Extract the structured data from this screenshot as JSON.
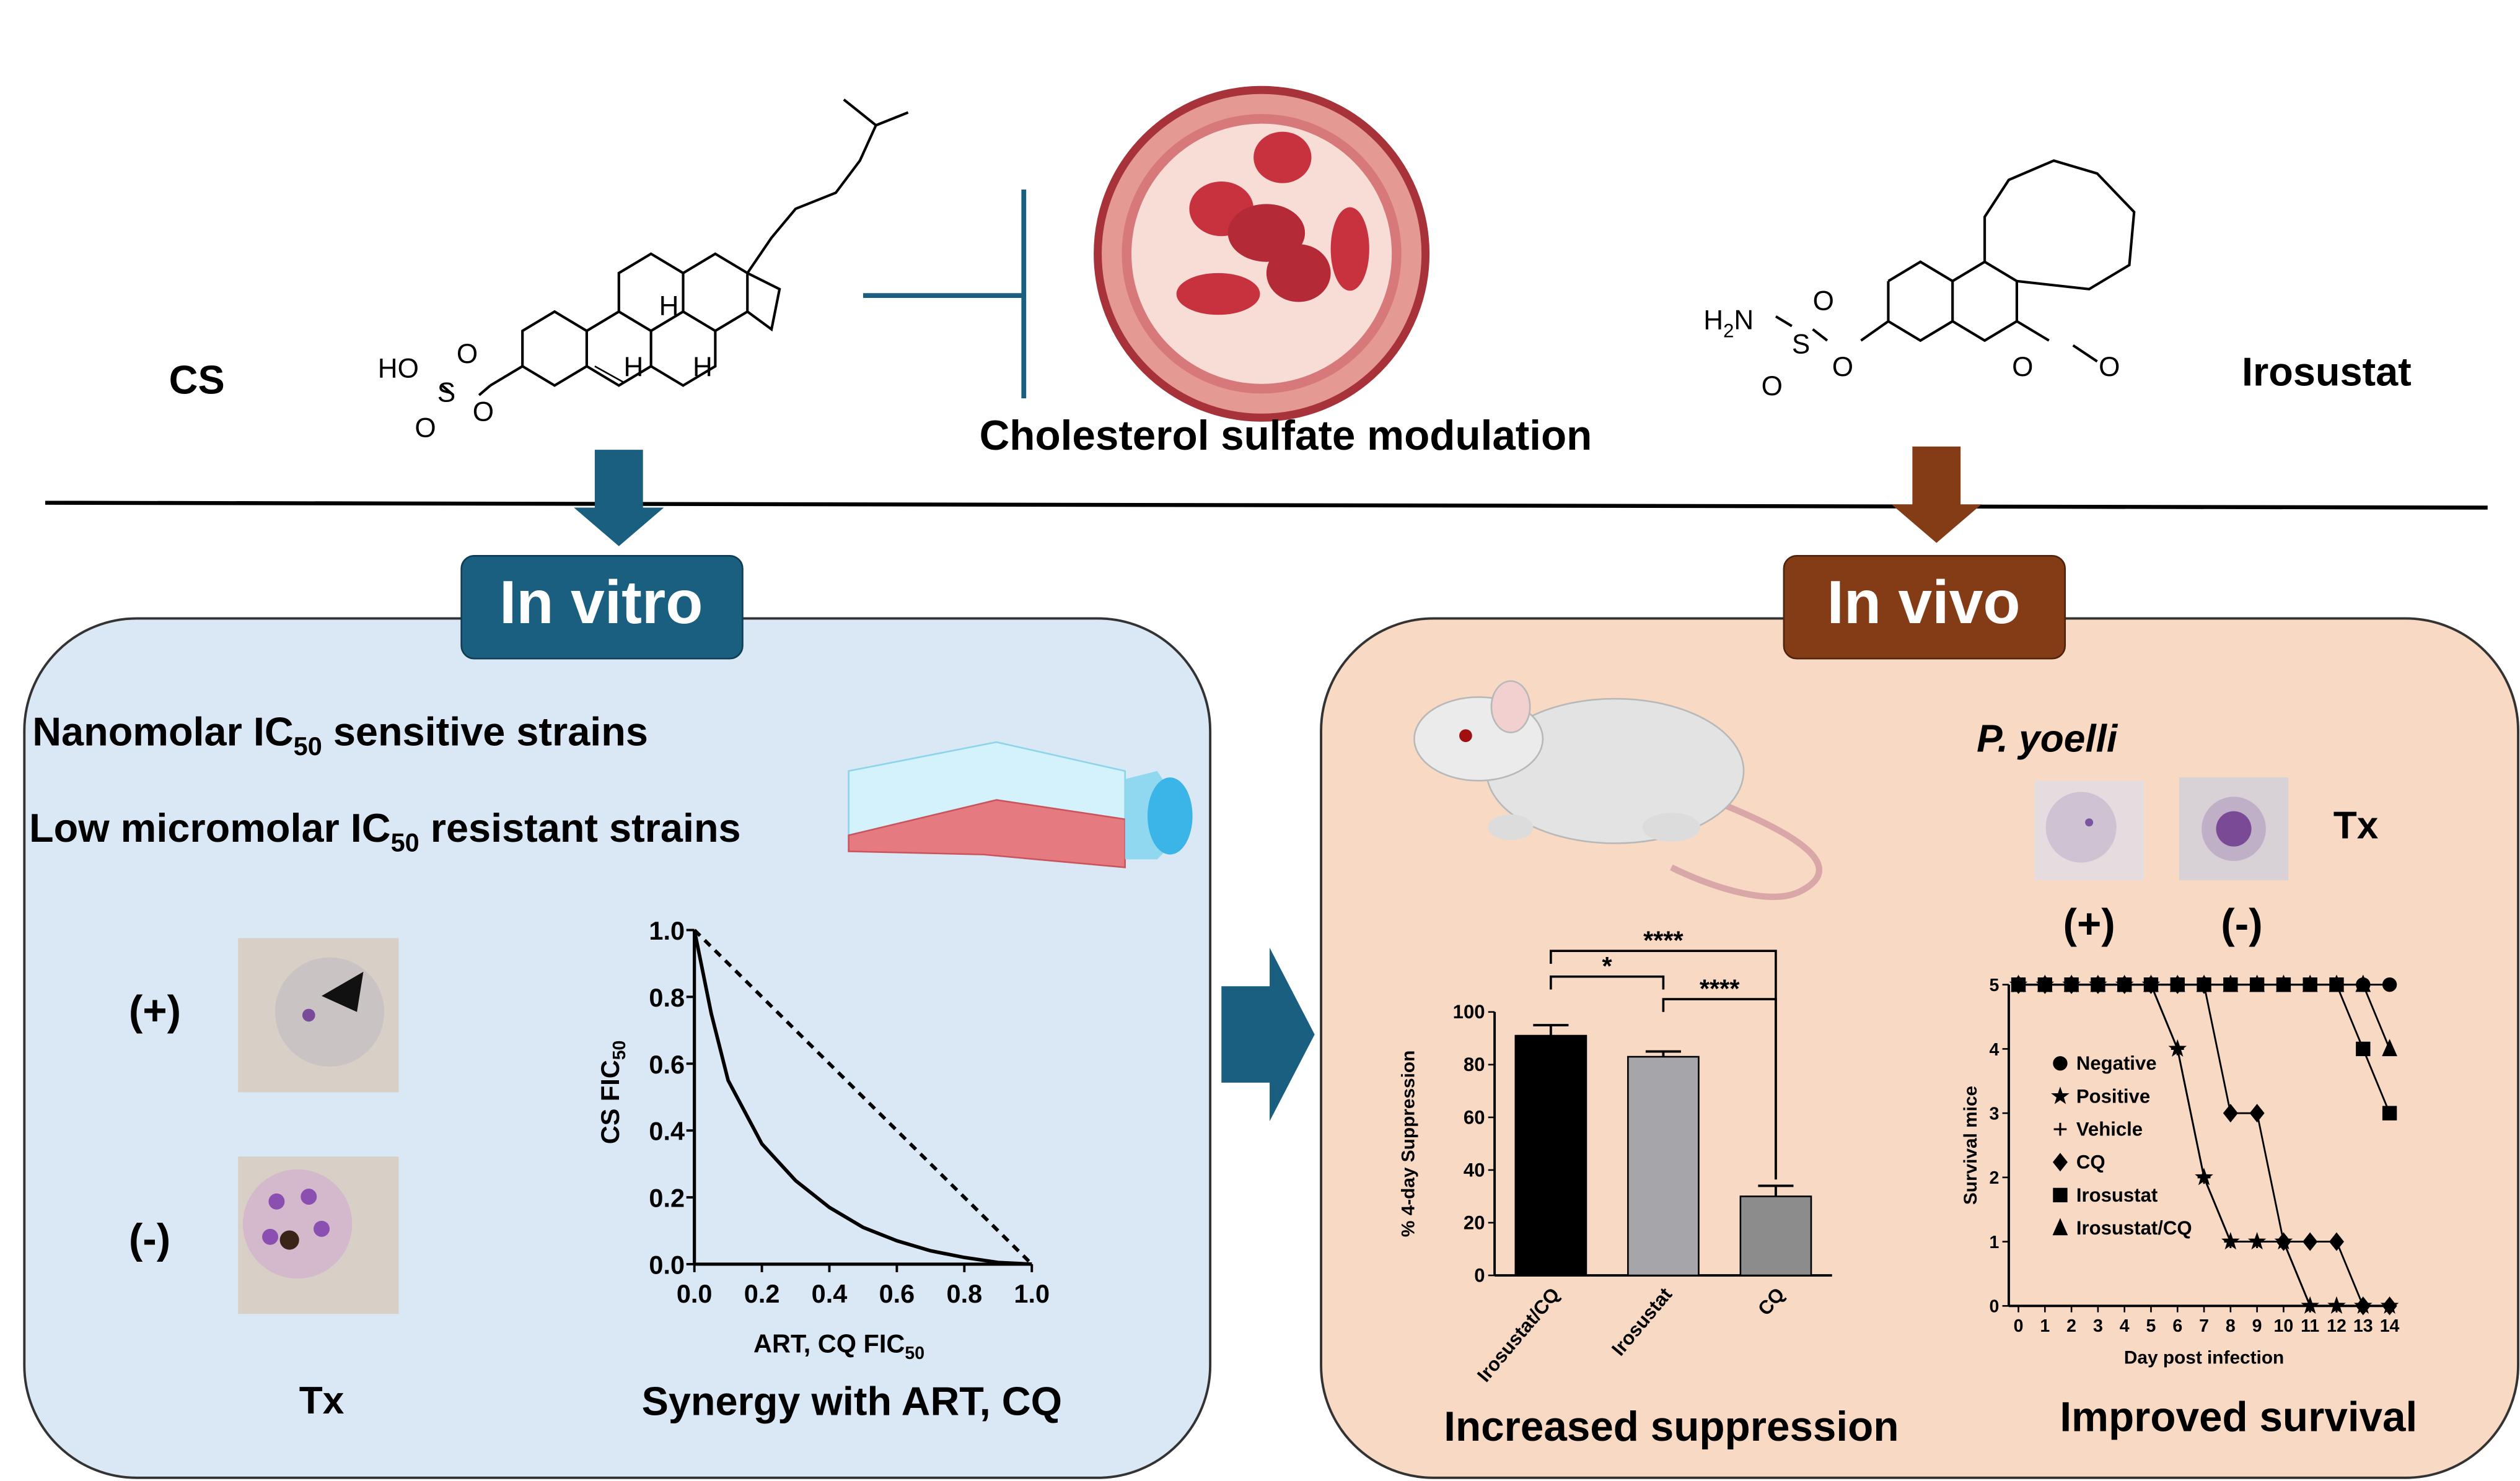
{
  "header": {
    "left_compound": "CS",
    "right_compound": "Irosustat",
    "center_caption": "Cholesterol sulfate modulation",
    "cs_atoms": [
      "HO",
      "S",
      "O",
      "O",
      "O",
      "H",
      "H",
      "H"
    ],
    "irosustat_atoms": [
      "H",
      "2",
      "N",
      "S",
      "O",
      "O",
      "O",
      "O",
      "O"
    ]
  },
  "in_vitro": {
    "title": "In vitro",
    "sensitive": {
      "pre": "Nanomolar IC",
      "sub": "50",
      "post": " sensitive strains"
    },
    "resistant": {
      "pre": "Low micromolar IC",
      "sub": "50",
      "post": " resistant strains"
    },
    "smear_labels": [
      "(+)",
      "(-)"
    ],
    "treatment_label": "Tx",
    "isobologram": {
      "type": "line",
      "xlabel": {
        "pre": "ART, CQ FIC",
        "sub": "50"
      },
      "ylabel": {
        "pre": "CS FIC",
        "sub": "50"
      },
      "xlim": [
        0,
        1
      ],
      "ylim": [
        0,
        1
      ],
      "xticks": [
        {
          "value": 0,
          "label": "0.0"
        },
        0.2,
        0.4,
        0.6,
        0.8,
        {
          "value": 1,
          "label": "1.0"
        }
      ],
      "yticks": [
        {
          "value": 0,
          "label": "0.0"
        },
        0.2,
        0.4,
        0.6,
        0.8,
        {
          "value": 1,
          "label": "1.0"
        }
      ],
      "series": [
        {
          "style": "solid",
          "color": "#000000",
          "x": [
            0,
            0.05,
            0.1,
            0.2,
            0.3,
            0.4,
            0.5,
            0.6,
            0.7,
            0.8,
            0.9,
            1
          ],
          "values": [
            1,
            0.75,
            0.55,
            0.36,
            0.25,
            0.17,
            0.11,
            0.07,
            0.04,
            0.02,
            0.005,
            0
          ]
        },
        {
          "style": "dashed",
          "color": "#000000",
          "x": [
            0,
            1
          ],
          "values": [
            1,
            0
          ]
        }
      ]
    },
    "caption": "Synergy with ART, CQ"
  },
  "in_vivo": {
    "title": "In vivo",
    "species": "P. yoelli",
    "smear_labels": [
      "(+)",
      "(-)"
    ],
    "treatment_label": "Tx",
    "bar_chart": {
      "type": "bar",
      "ylabel": "% 4-day Suppression",
      "categories": [
        "Irosustat/CQ",
        "Irosustat",
        "CQ"
      ],
      "values": [
        91,
        83,
        30
      ],
      "errors": [
        4,
        2,
        4
      ],
      "colors": [
        "#000000",
        "#a5a5aa",
        "#8c8c8c"
      ],
      "ylim": [
        0,
        100
      ],
      "yticks": [
        0,
        20,
        40,
        60,
        80,
        100
      ],
      "significance_labels": [
        "****",
        "*",
        "****"
      ]
    },
    "bar_caption": "Increased suppression",
    "survival_chart": {
      "type": "line",
      "xlabel": "Day post infection",
      "ylabel": "Survival mice",
      "x": [
        0,
        1,
        2,
        3,
        4,
        5,
        6,
        7,
        8,
        9,
        10,
        11,
        12,
        13,
        14
      ],
      "xlim": [
        0,
        14
      ],
      "xticks": [
        0,
        1,
        2,
        3,
        4,
        5,
        6,
        7,
        8,
        9,
        10,
        11,
        12,
        13,
        14
      ],
      "ylim": [
        0,
        5
      ],
      "yticks": [
        0,
        1,
        2,
        3,
        4,
        5
      ],
      "series": [
        {
          "name": "Negative",
          "marker": "circle",
          "values": [
            5,
            5,
            5,
            5,
            5,
            5,
            5,
            5,
            5,
            5,
            5,
            5,
            5,
            5,
            5
          ]
        },
        {
          "name": "Positive",
          "marker": "star",
          "values": [
            5,
            5,
            5,
            5,
            5,
            5,
            4,
            2,
            1,
            1,
            1,
            0,
            0,
            0,
            0
          ]
        },
        {
          "name": "Vehicle",
          "marker": "plus",
          "values": [
            5,
            5,
            5,
            5,
            5,
            5,
            4,
            2,
            1,
            1,
            1,
            0,
            0,
            0,
            0
          ]
        },
        {
          "name": "CQ",
          "marker": "diamond",
          "values": [
            5,
            5,
            5,
            5,
            5,
            5,
            5,
            5,
            3,
            3,
            1,
            1,
            1,
            0,
            0
          ]
        },
        {
          "name": "Irosustat",
          "marker": "square",
          "values": [
            5,
            5,
            5,
            5,
            5,
            5,
            5,
            5,
            5,
            5,
            5,
            5,
            5,
            4,
            3
          ]
        },
        {
          "name": "Irosustat/CQ",
          "marker": "triangle",
          "values": [
            5,
            5,
            5,
            5,
            5,
            5,
            5,
            5,
            5,
            5,
            5,
            5,
            5,
            5,
            4
          ]
        }
      ]
    },
    "survival_caption": "Improved survival"
  }
}
